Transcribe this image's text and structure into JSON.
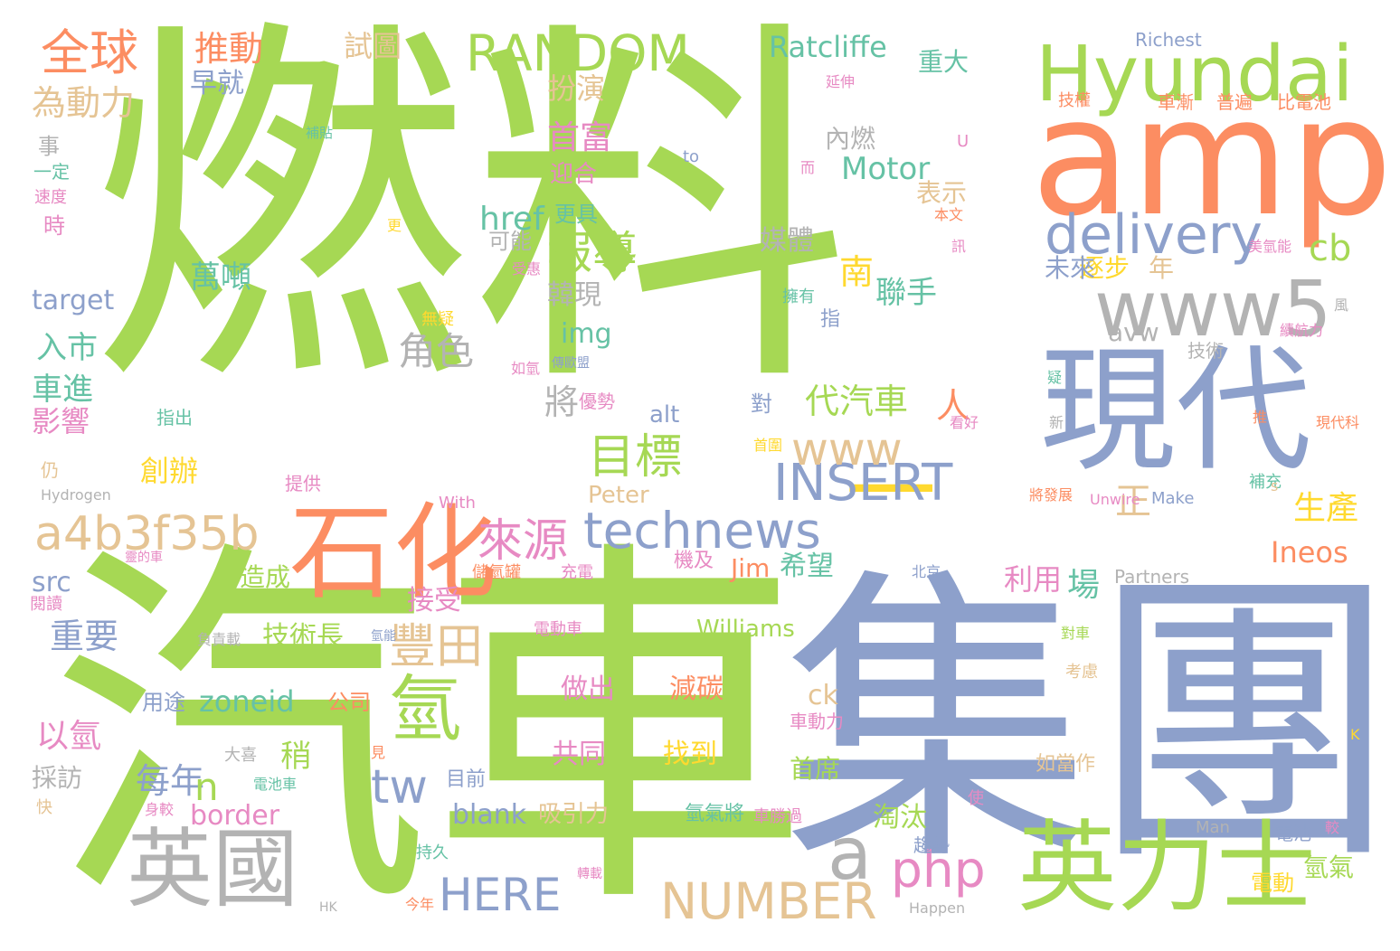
{
  "colors": {
    "green": "#a6d854",
    "blue": "#8da0cb",
    "orange": "#fc8d62",
    "gray": "#b3b3b3",
    "tan": "#e5c494",
    "pink": "#e78ac3",
    "teal": "#66c2a5",
    "yellow": "#ffd92f"
  },
  "words": [
    {
      "text": "燃料",
      "color": "green"
    },
    {
      "text": "汽車",
      "color": "green"
    },
    {
      "text": "集團",
      "color": "blue"
    },
    {
      "text": "amp",
      "color": "orange"
    },
    {
      "text": "現代",
      "color": "blue"
    },
    {
      "text": "Hyundai",
      "color": "green"
    },
    {
      "text": "www5",
      "color": "gray"
    },
    {
      "text": "delivery",
      "color": "blue"
    },
    {
      "text": "一",
      "color": "yellow"
    },
    {
      "text": "英力士",
      "color": "green"
    },
    {
      "text": "石化",
      "color": "orange"
    },
    {
      "text": "英國",
      "color": "gray"
    },
    {
      "text": "RANDOM",
      "color": "green"
    },
    {
      "text": "technews",
      "color": "blue"
    },
    {
      "text": "a4b3f35b",
      "color": "tan"
    },
    {
      "text": "INSERT",
      "color": "blue"
    },
    {
      "text": "NUMBER",
      "color": "tan"
    },
    {
      "text": "HERE",
      "color": "blue"
    },
    {
      "text": "php",
      "color": "pink"
    },
    {
      "text": "a",
      "color": "gray"
    },
    {
      "text": "報導",
      "color": "green"
    },
    {
      "text": "目標",
      "color": "green"
    },
    {
      "text": "氫",
      "color": "green"
    },
    {
      "text": "豐田",
      "color": "tan"
    },
    {
      "text": "來源",
      "color": "pink"
    },
    {
      "text": "www",
      "color": "tan"
    },
    {
      "text": "全球",
      "color": "orange"
    },
    {
      "text": "推動",
      "color": "orange"
    },
    {
      "text": "Ratcliffe",
      "color": "teal"
    },
    {
      "text": "Motor",
      "color": "teal"
    },
    {
      "text": "tw",
      "color": "blue"
    },
    {
      "text": "cb",
      "color": "green"
    },
    {
      "text": "Ineos",
      "color": "orange"
    },
    {
      "text": "每年",
      "color": "blue"
    },
    {
      "text": "n",
      "color": "green"
    },
    {
      "text": "技術長",
      "color": "green"
    },
    {
      "text": "zoneid",
      "color": "teal"
    },
    {
      "text": "border",
      "color": "pink"
    },
    {
      "text": "blank",
      "color": "blue"
    },
    {
      "text": "Williams",
      "color": "green"
    },
    {
      "text": "代汽車",
      "color": "green"
    },
    {
      "text": "試圖",
      "color": "tan"
    },
    {
      "text": "首富",
      "color": "pink"
    },
    {
      "text": "扮演",
      "color": "tan"
    },
    {
      "text": "href",
      "color": "teal"
    },
    {
      "text": "角色",
      "color": "gray"
    },
    {
      "text": "為動力",
      "color": "tan"
    },
    {
      "text": "萬噸",
      "color": "teal"
    },
    {
      "text": "入市",
      "color": "teal"
    },
    {
      "text": "車進",
      "color": "teal"
    },
    {
      "text": "影響",
      "color": "pink"
    },
    {
      "text": "重要",
      "color": "blue"
    },
    {
      "text": "以氫",
      "color": "pink"
    },
    {
      "text": "做出",
      "color": "pink"
    },
    {
      "text": "減碳",
      "color": "orange"
    },
    {
      "text": "共同",
      "color": "pink"
    },
    {
      "text": "找到",
      "color": "yellow"
    },
    {
      "text": "創辦",
      "color": "yellow"
    },
    {
      "text": "韓現",
      "color": "gray"
    },
    {
      "text": "src",
      "color": "blue"
    },
    {
      "text": "target",
      "color": "blue"
    },
    {
      "text": "生產",
      "color": "yellow"
    },
    {
      "text": "聯手",
      "color": "teal"
    },
    {
      "text": "利用",
      "color": "pink"
    },
    {
      "text": "場",
      "color": "teal"
    },
    {
      "text": "Jim",
      "color": "orange"
    },
    {
      "text": "希望",
      "color": "teal"
    },
    {
      "text": "img",
      "color": "teal"
    },
    {
      "text": "alt",
      "color": "blue"
    },
    {
      "text": "Peter",
      "color": "tan"
    },
    {
      "text": "ck",
      "color": "tan"
    },
    {
      "text": "媒體",
      "color": "gray"
    },
    {
      "text": "內燃",
      "color": "gray"
    },
    {
      "text": "南",
      "color": "yellow"
    },
    {
      "text": "人",
      "color": "orange"
    },
    {
      "text": "正",
      "color": "tan"
    },
    {
      "text": "表示",
      "color": "tan"
    },
    {
      "text": "重大",
      "color": "teal"
    },
    {
      "text": "逐步",
      "color": "yellow"
    },
    {
      "text": "年",
      "color": "tan"
    },
    {
      "text": "未來",
      "color": "blue"
    },
    {
      "text": "avw",
      "color": "gray"
    },
    {
      "text": "早就",
      "color": "blue"
    },
    {
      "text": "接受",
      "color": "pink"
    },
    {
      "text": "造成",
      "color": "green"
    },
    {
      "text": "將",
      "color": "gray"
    },
    {
      "text": "採訪",
      "color": "gray"
    },
    {
      "text": "稍",
      "color": "green"
    },
    {
      "text": "首席",
      "color": "green"
    },
    {
      "text": "淘汰",
      "color": "green"
    },
    {
      "text": "公司",
      "color": "orange"
    },
    {
      "text": "吸引力",
      "color": "tan"
    },
    {
      "text": "氫氣",
      "color": "green"
    },
    {
      "text": "電動",
      "color": "yellow"
    },
    {
      "text": "如當作",
      "color": "tan"
    },
    {
      "text": "可能",
      "color": "gray"
    },
    {
      "text": "迎合",
      "color": "pink"
    },
    {
      "text": "更具",
      "color": "teal"
    },
    {
      "text": "Richest",
      "color": "blue"
    },
    {
      "text": "技權",
      "color": "orange"
    },
    {
      "text": "延伸",
      "color": "pink"
    },
    {
      "text": "車漸",
      "color": "orange"
    },
    {
      "text": "普遍",
      "color": "orange"
    },
    {
      "text": "比電池",
      "color": "orange"
    },
    {
      "text": "事",
      "color": "gray"
    },
    {
      "text": "一定",
      "color": "teal"
    },
    {
      "text": "速度",
      "color": "pink"
    },
    {
      "text": "時",
      "color": "pink"
    },
    {
      "text": "補貼",
      "color": "teal"
    },
    {
      "text": "to",
      "color": "blue"
    },
    {
      "text": "U",
      "color": "pink"
    },
    {
      "text": "而",
      "color": "pink"
    },
    {
      "text": "本文",
      "color": "orange"
    },
    {
      "text": "更",
      "color": "yellow"
    },
    {
      "text": "訊",
      "color": "pink"
    },
    {
      "text": "美氫能",
      "color": "pink"
    },
    {
      "text": "擁有",
      "color": "teal"
    },
    {
      "text": "指",
      "color": "blue"
    },
    {
      "text": "風",
      "color": "gray"
    },
    {
      "text": "續航力",
      "color": "pink"
    },
    {
      "text": "受惠",
      "color": "pink"
    },
    {
      "text": "無疑",
      "color": "yellow"
    },
    {
      "text": "如氫",
      "color": "pink"
    },
    {
      "text": "傳歐盟",
      "color": "blue"
    },
    {
      "text": "技術",
      "color": "gray"
    },
    {
      "text": "疑",
      "color": "teal"
    },
    {
      "text": "新",
      "color": "gray"
    },
    {
      "text": "推",
      "color": "orange"
    },
    {
      "text": "現代科",
      "color": "orange"
    },
    {
      "text": "優勢",
      "color": "pink"
    },
    {
      "text": "對",
      "color": "blue"
    },
    {
      "text": "看好",
      "color": "pink"
    },
    {
      "text": "首圍",
      "color": "yellow"
    },
    {
      "text": "指出",
      "color": "teal"
    },
    {
      "text": "仍",
      "color": "tan"
    },
    {
      "text": "提供",
      "color": "pink"
    },
    {
      "text": "Hydrogen",
      "color": "gray"
    },
    {
      "text": "With",
      "color": "pink"
    },
    {
      "text": "將發展",
      "color": "orange"
    },
    {
      "text": "Unwire",
      "color": "pink"
    },
    {
      "text": "Make",
      "color": "blue"
    },
    {
      "text": "補充",
      "color": "teal"
    },
    {
      "text": "s",
      "color": "tan"
    },
    {
      "text": "靈的車",
      "color": "pink"
    },
    {
      "text": "儲氫罐",
      "color": "orange"
    },
    {
      "text": "充電",
      "color": "pink"
    },
    {
      "text": "機及",
      "color": "pink"
    },
    {
      "text": "北京",
      "color": "blue"
    },
    {
      "text": "Partners",
      "color": "gray"
    },
    {
      "text": "閱讀",
      "color": "pink"
    },
    {
      "text": "負責載",
      "color": "gray"
    },
    {
      "text": "氫能",
      "color": "blue"
    },
    {
      "text": "電動車",
      "color": "pink"
    },
    {
      "text": "對車",
      "color": "green"
    },
    {
      "text": "考慮",
      "color": "tan"
    },
    {
      "text": "用途",
      "color": "blue"
    },
    {
      "text": "大喜",
      "color": "gray"
    },
    {
      "text": "見",
      "color": "orange"
    },
    {
      "text": "目前",
      "color": "blue"
    },
    {
      "text": "車動力",
      "color": "pink"
    },
    {
      "text": "K",
      "color": "yellow"
    },
    {
      "text": "電池車",
      "color": "teal"
    },
    {
      "text": "身較",
      "color": "pink"
    },
    {
      "text": "快",
      "color": "tan"
    },
    {
      "text": "使",
      "color": "pink"
    },
    {
      "text": "氫氣將",
      "color": "teal"
    },
    {
      "text": "車勝過",
      "color": "pink"
    },
    {
      "text": "Man",
      "color": "gray"
    },
    {
      "text": "電池",
      "color": "blue"
    },
    {
      "text": "較",
      "color": "pink"
    },
    {
      "text": "持久",
      "color": "teal"
    },
    {
      "text": "趨勢",
      "color": "blue"
    },
    {
      "text": "轉載",
      "color": "pink"
    },
    {
      "text": "今年",
      "color": "orange"
    },
    {
      "text": "HK",
      "color": "gray"
    },
    {
      "text": "Happen",
      "color": "gray"
    }
  ]
}
